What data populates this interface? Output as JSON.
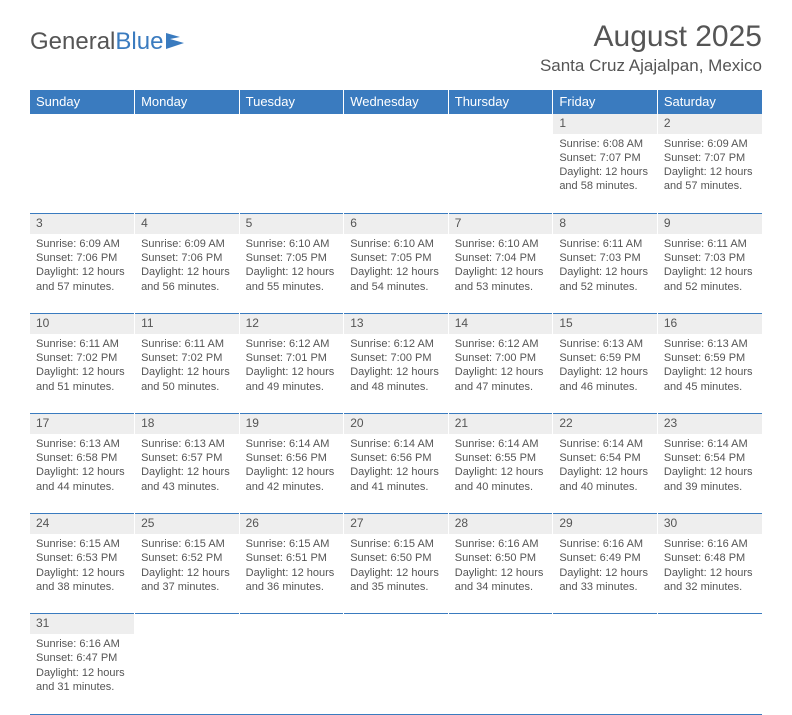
{
  "logo": {
    "text1": "General",
    "text2": "Blue"
  },
  "title": "August 2025",
  "location": "Santa Cruz Ajajalpan, Mexico",
  "colors": {
    "header_bg": "#3a7bbf",
    "header_text": "#ffffff",
    "daynum_bg": "#eeeeee",
    "border": "#3a7bbf",
    "text": "#555555",
    "page_bg": "#ffffff"
  },
  "weekdays": [
    "Sunday",
    "Monday",
    "Tuesday",
    "Wednesday",
    "Thursday",
    "Friday",
    "Saturday"
  ],
  "weeks": [
    [
      null,
      null,
      null,
      null,
      null,
      {
        "d": "1",
        "sr": "6:08 AM",
        "ss": "7:07 PM",
        "dl": "12 hours and 58 minutes."
      },
      {
        "d": "2",
        "sr": "6:09 AM",
        "ss": "7:07 PM",
        "dl": "12 hours and 57 minutes."
      }
    ],
    [
      {
        "d": "3",
        "sr": "6:09 AM",
        "ss": "7:06 PM",
        "dl": "12 hours and 57 minutes."
      },
      {
        "d": "4",
        "sr": "6:09 AM",
        "ss": "7:06 PM",
        "dl": "12 hours and 56 minutes."
      },
      {
        "d": "5",
        "sr": "6:10 AM",
        "ss": "7:05 PM",
        "dl": "12 hours and 55 minutes."
      },
      {
        "d": "6",
        "sr": "6:10 AM",
        "ss": "7:05 PM",
        "dl": "12 hours and 54 minutes."
      },
      {
        "d": "7",
        "sr": "6:10 AM",
        "ss": "7:04 PM",
        "dl": "12 hours and 53 minutes."
      },
      {
        "d": "8",
        "sr": "6:11 AM",
        "ss": "7:03 PM",
        "dl": "12 hours and 52 minutes."
      },
      {
        "d": "9",
        "sr": "6:11 AM",
        "ss": "7:03 PM",
        "dl": "12 hours and 52 minutes."
      }
    ],
    [
      {
        "d": "10",
        "sr": "6:11 AM",
        "ss": "7:02 PM",
        "dl": "12 hours and 51 minutes."
      },
      {
        "d": "11",
        "sr": "6:11 AM",
        "ss": "7:02 PM",
        "dl": "12 hours and 50 minutes."
      },
      {
        "d": "12",
        "sr": "6:12 AM",
        "ss": "7:01 PM",
        "dl": "12 hours and 49 minutes."
      },
      {
        "d": "13",
        "sr": "6:12 AM",
        "ss": "7:00 PM",
        "dl": "12 hours and 48 minutes."
      },
      {
        "d": "14",
        "sr": "6:12 AM",
        "ss": "7:00 PM",
        "dl": "12 hours and 47 minutes."
      },
      {
        "d": "15",
        "sr": "6:13 AM",
        "ss": "6:59 PM",
        "dl": "12 hours and 46 minutes."
      },
      {
        "d": "16",
        "sr": "6:13 AM",
        "ss": "6:59 PM",
        "dl": "12 hours and 45 minutes."
      }
    ],
    [
      {
        "d": "17",
        "sr": "6:13 AM",
        "ss": "6:58 PM",
        "dl": "12 hours and 44 minutes."
      },
      {
        "d": "18",
        "sr": "6:13 AM",
        "ss": "6:57 PM",
        "dl": "12 hours and 43 minutes."
      },
      {
        "d": "19",
        "sr": "6:14 AM",
        "ss": "6:56 PM",
        "dl": "12 hours and 42 minutes."
      },
      {
        "d": "20",
        "sr": "6:14 AM",
        "ss": "6:56 PM",
        "dl": "12 hours and 41 minutes."
      },
      {
        "d": "21",
        "sr": "6:14 AM",
        "ss": "6:55 PM",
        "dl": "12 hours and 40 minutes."
      },
      {
        "d": "22",
        "sr": "6:14 AM",
        "ss": "6:54 PM",
        "dl": "12 hours and 40 minutes."
      },
      {
        "d": "23",
        "sr": "6:14 AM",
        "ss": "6:54 PM",
        "dl": "12 hours and 39 minutes."
      }
    ],
    [
      {
        "d": "24",
        "sr": "6:15 AM",
        "ss": "6:53 PM",
        "dl": "12 hours and 38 minutes."
      },
      {
        "d": "25",
        "sr": "6:15 AM",
        "ss": "6:52 PM",
        "dl": "12 hours and 37 minutes."
      },
      {
        "d": "26",
        "sr": "6:15 AM",
        "ss": "6:51 PM",
        "dl": "12 hours and 36 minutes."
      },
      {
        "d": "27",
        "sr": "6:15 AM",
        "ss": "6:50 PM",
        "dl": "12 hours and 35 minutes."
      },
      {
        "d": "28",
        "sr": "6:16 AM",
        "ss": "6:50 PM",
        "dl": "12 hours and 34 minutes."
      },
      {
        "d": "29",
        "sr": "6:16 AM",
        "ss": "6:49 PM",
        "dl": "12 hours and 33 minutes."
      },
      {
        "d": "30",
        "sr": "6:16 AM",
        "ss": "6:48 PM",
        "dl": "12 hours and 32 minutes."
      }
    ],
    [
      {
        "d": "31",
        "sr": "6:16 AM",
        "ss": "6:47 PM",
        "dl": "12 hours and 31 minutes."
      },
      null,
      null,
      null,
      null,
      null,
      null
    ]
  ],
  "labels": {
    "sunrise": "Sunrise:",
    "sunset": "Sunset:",
    "daylight": "Daylight:"
  }
}
